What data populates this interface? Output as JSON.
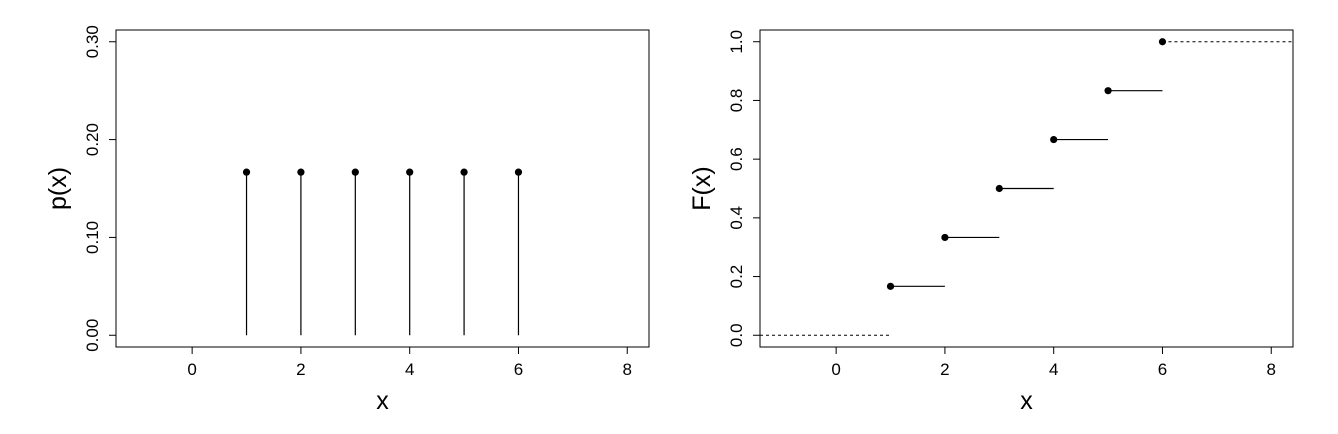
{
  "chart_data": [
    {
      "type": "stem",
      "title": "",
      "xlabel": "x",
      "ylabel": "p(x)",
      "xlim": [
        -1.4,
        8.4
      ],
      "ylim": [
        -0.012,
        0.312
      ],
      "xticks": [
        0,
        2,
        4,
        6,
        8
      ],
      "xtick_labels": [
        "0",
        "2",
        "4",
        "6",
        "8"
      ],
      "yticks": [
        0,
        0.1,
        0.2,
        0.3
      ],
      "ytick_labels": [
        "0.00",
        "0.10",
        "0.20",
        "0.30"
      ],
      "grid": false,
      "legend": "none",
      "x": [
        1,
        2,
        3,
        4,
        5,
        6
      ],
      "y": [
        0.1667,
        0.1667,
        0.1667,
        0.1667,
        0.1667,
        0.1667
      ]
    },
    {
      "type": "step",
      "title": "",
      "xlabel": "x",
      "ylabel": "F(x)",
      "xlim": [
        -1.4,
        8.4
      ],
      "ylim": [
        -0.04,
        1.04
      ],
      "xticks": [
        0,
        2,
        4,
        6,
        8
      ],
      "xtick_labels": [
        "0",
        "2",
        "4",
        "6",
        "8"
      ],
      "yticks": [
        0,
        0.2,
        0.4,
        0.6,
        0.8,
        1.0
      ],
      "ytick_labels": [
        "0.0",
        "0.2",
        "0.4",
        "0.6",
        "0.8",
        "1.0"
      ],
      "grid": false,
      "legend": "none",
      "x": [
        1,
        2,
        3,
        4,
        5,
        6
      ],
      "y": [
        0.1667,
        0.3333,
        0.5,
        0.6667,
        0.8333,
        1.0
      ],
      "left_tail": {
        "from_x": -1.4,
        "to_x": 1,
        "y": 0,
        "style": "dashed"
      },
      "right_tail": {
        "from_x": 6,
        "to_x": 8.4,
        "y": 1.0,
        "style": "dashed"
      }
    }
  ]
}
